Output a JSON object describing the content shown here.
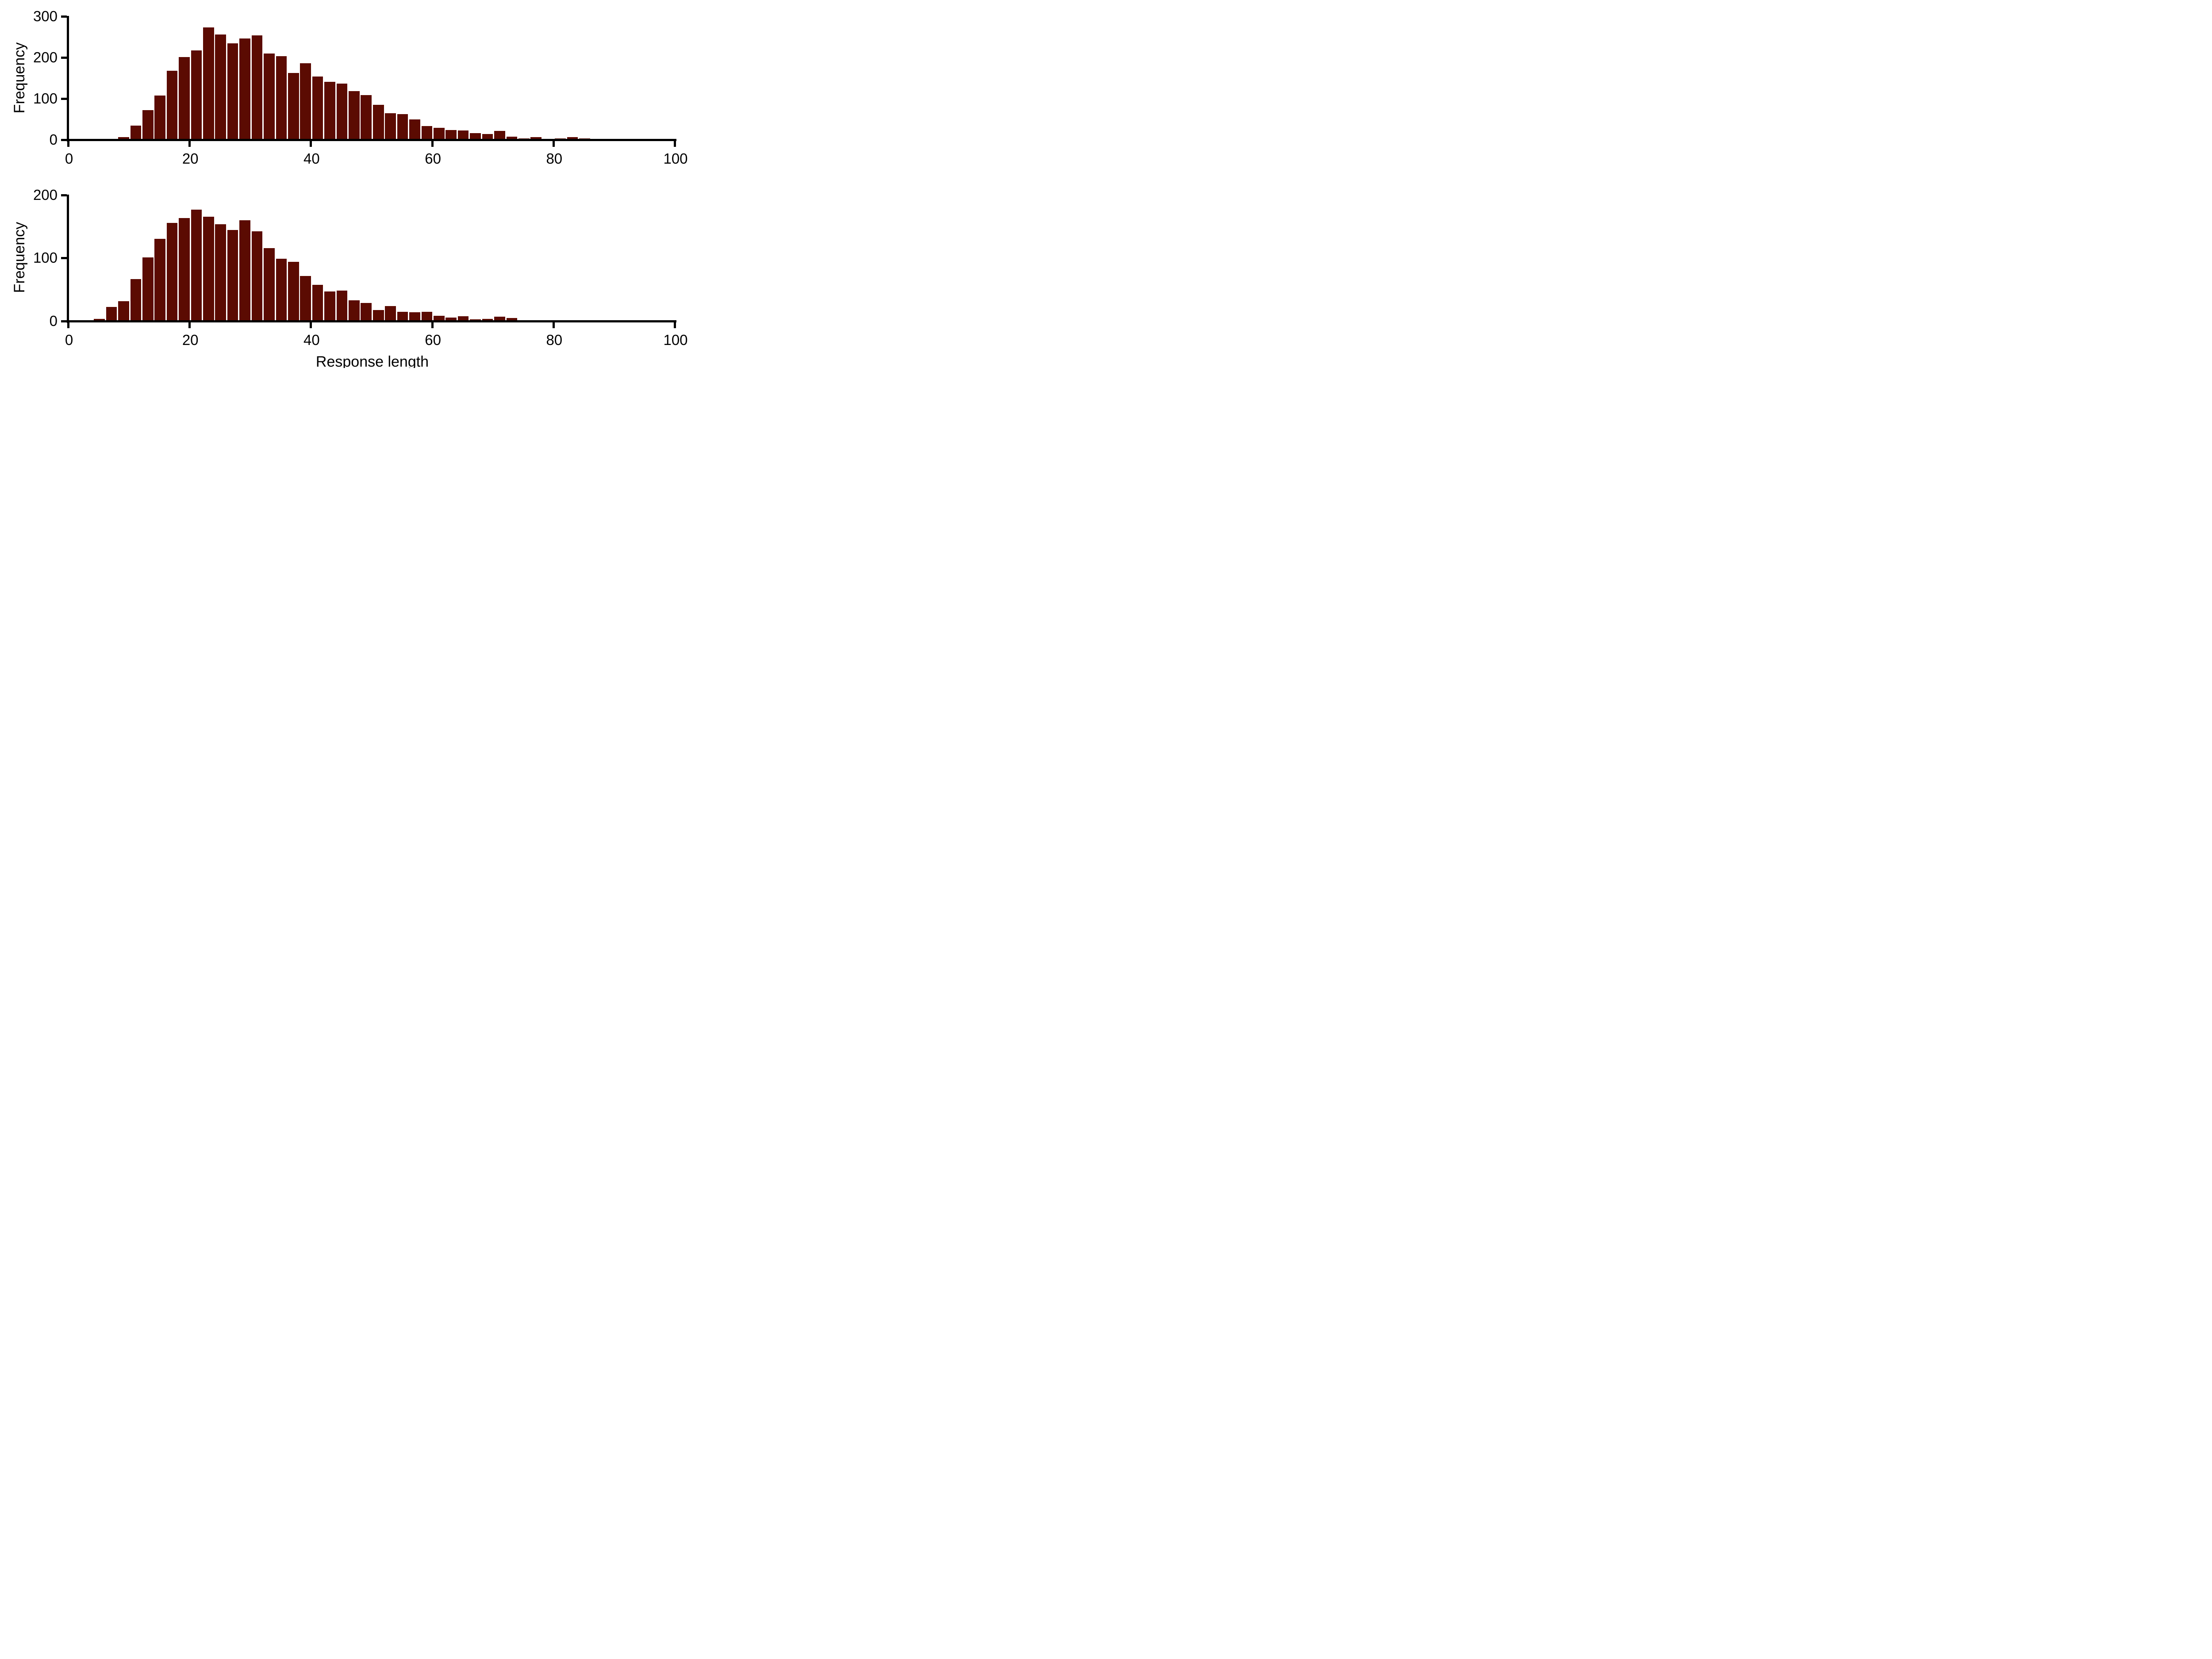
{
  "figure": {
    "background_color": "#ffffff",
    "bar_color": "#5b0b02",
    "axis_color": "#000000",
    "text_color": "#000000"
  },
  "chart_data": [
    {
      "type": "bar",
      "subtype": "histogram",
      "title": "",
      "xlabel": "",
      "ylabel": "Frequency",
      "legend": null,
      "grid": false,
      "xlim": [
        0,
        100
      ],
      "ylim": [
        0,
        300
      ],
      "x_ticks": [
        0,
        20,
        40,
        60,
        80,
        100
      ],
      "y_ticks": [
        0,
        100,
        200,
        300
      ],
      "bin_width": 2,
      "bin_starts": [
        8,
        10,
        12,
        14,
        16,
        18,
        20,
        22,
        24,
        26,
        28,
        30,
        32,
        34,
        36,
        38,
        40,
        42,
        44,
        46,
        48,
        50,
        52,
        54,
        56,
        58,
        60,
        62,
        64,
        66,
        68,
        70,
        72,
        74,
        76,
        78,
        80,
        82,
        84
      ],
      "values": [
        5,
        33,
        71,
        106,
        167,
        200,
        216,
        272,
        255,
        233,
        245,
        253,
        209,
        202,
        161,
        185,
        153,
        140,
        136,
        117,
        108,
        84,
        63,
        61,
        48,
        32,
        28,
        23,
        22,
        15,
        13,
        20,
        6,
        2,
        5,
        1,
        2,
        5,
        2
      ]
    },
    {
      "type": "bar",
      "subtype": "histogram",
      "title": "",
      "xlabel": "Response length",
      "ylabel": "Frequency",
      "legend": null,
      "grid": false,
      "xlim": [
        0,
        100
      ],
      "ylim": [
        0,
        200
      ],
      "x_ticks": [
        0,
        20,
        40,
        60,
        80,
        100
      ],
      "y_ticks": [
        0,
        100,
        200
      ],
      "bin_width": 2,
      "bin_starts": [
        4,
        6,
        8,
        10,
        12,
        14,
        16,
        18,
        20,
        22,
        24,
        26,
        28,
        30,
        32,
        34,
        36,
        38,
        40,
        42,
        44,
        46,
        48,
        50,
        52,
        54,
        56,
        58,
        60,
        62,
        64,
        66,
        68,
        70,
        72,
        74,
        76,
        78
      ],
      "values": [
        3,
        22,
        31,
        66,
        100,
        130,
        155,
        163,
        176,
        165,
        153,
        144,
        159,
        142,
        115,
        98,
        93,
        71,
        57,
        46,
        48,
        32,
        28,
        17,
        23,
        14,
        13,
        14,
        8,
        5,
        7,
        2,
        3,
        6,
        4,
        1,
        0,
        1
      ]
    }
  ]
}
